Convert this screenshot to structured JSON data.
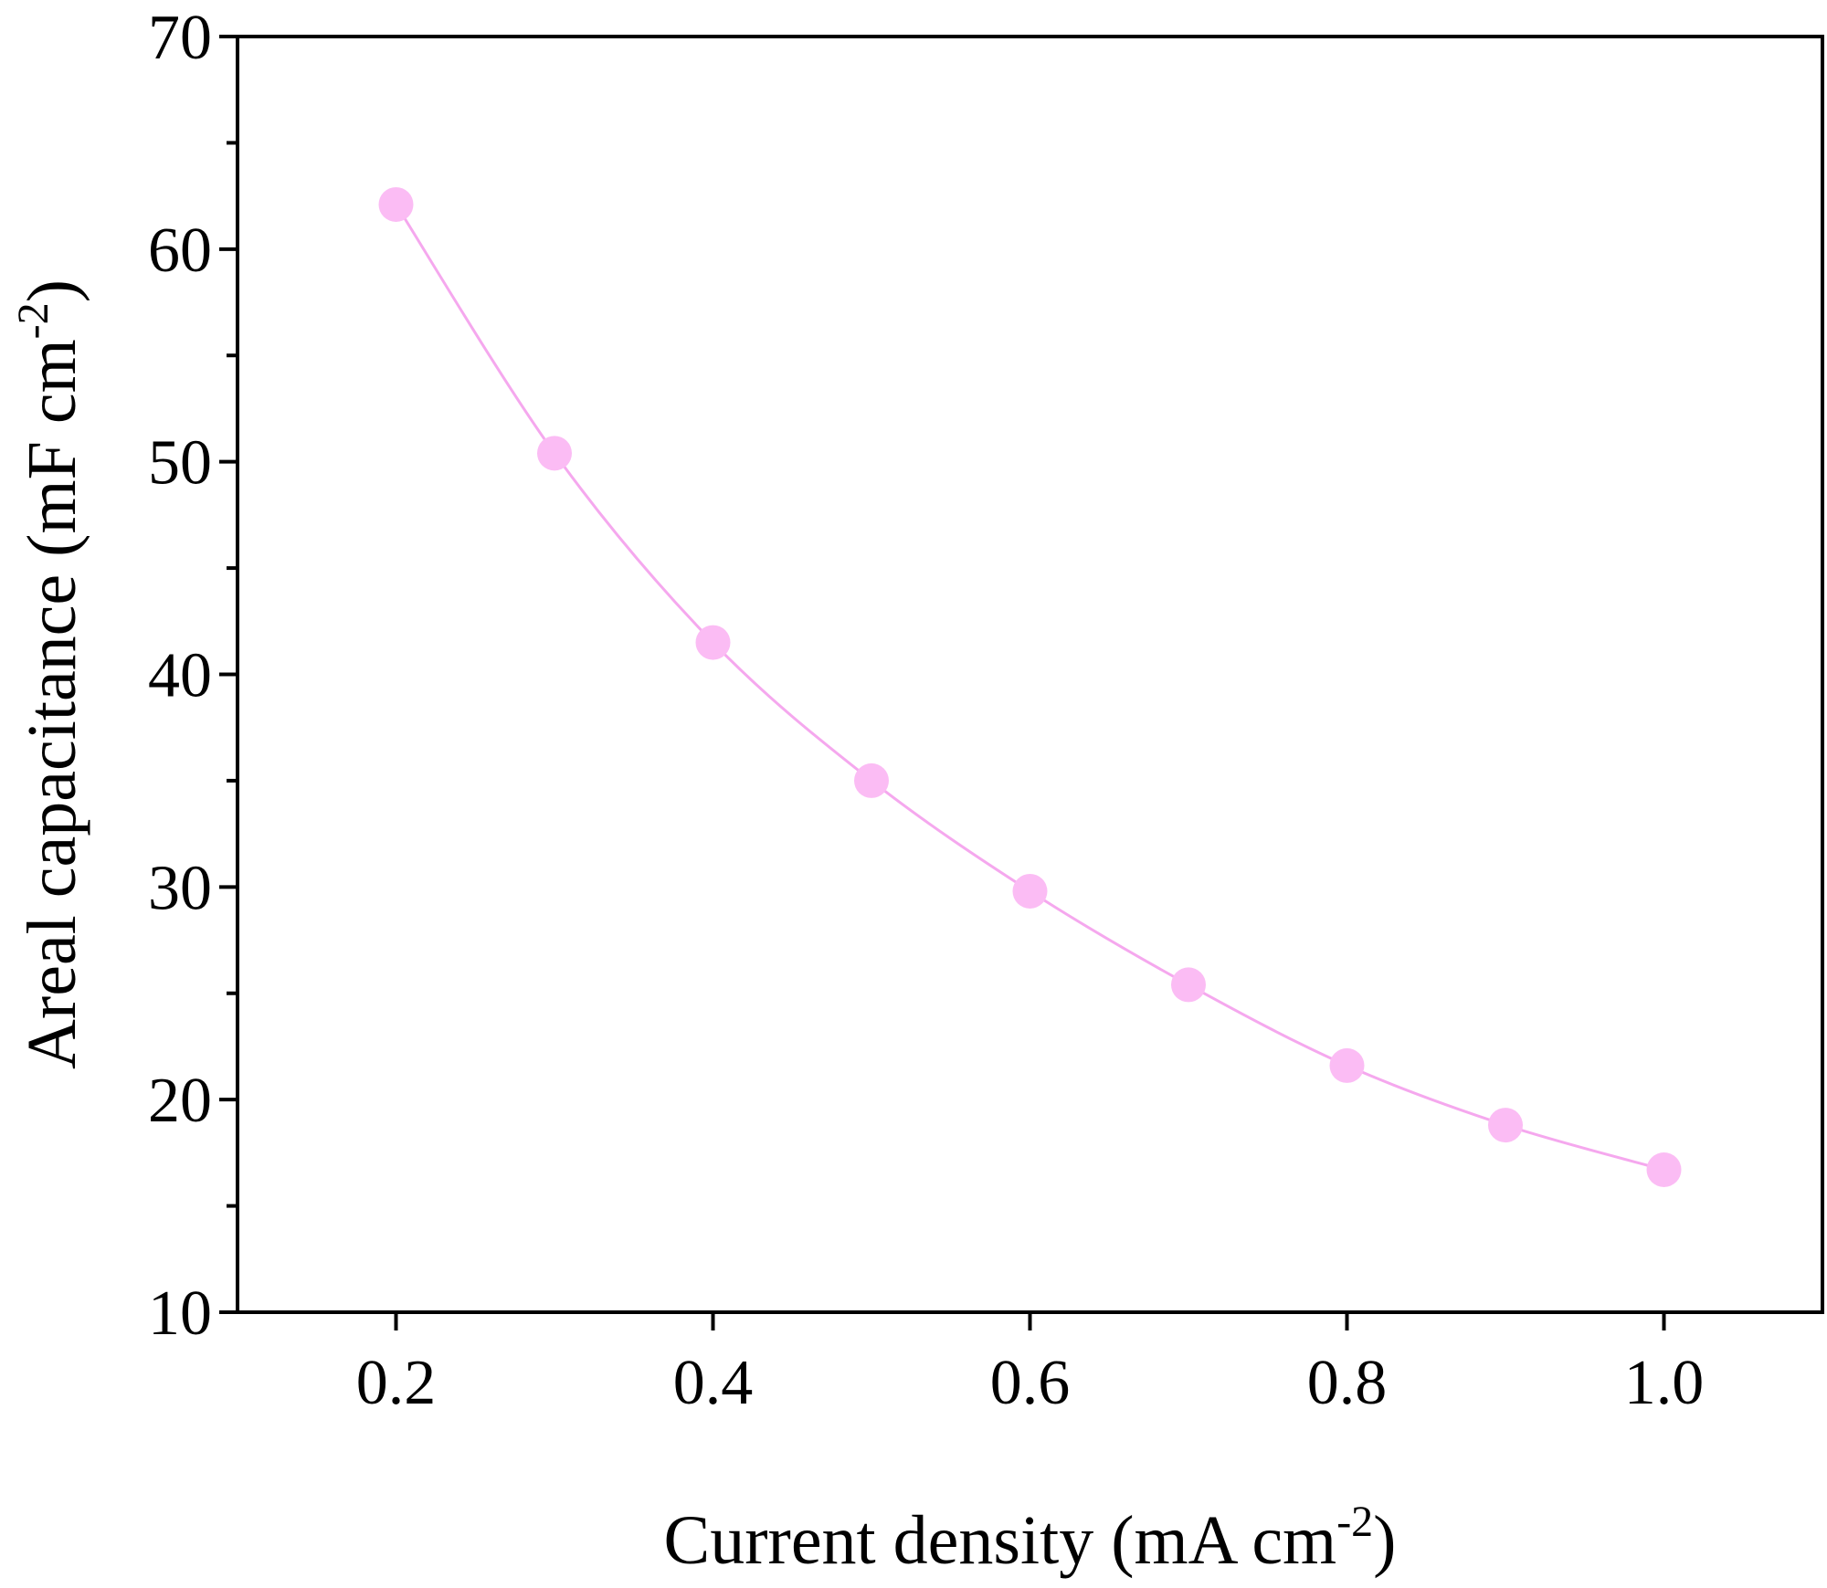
{
  "chart_data": {
    "type": "line",
    "x_axis": {
      "label_main": "Current density (mA cm",
      "label_sup": "-2",
      "label_end": ")",
      "range": [
        0.1,
        1.1
      ],
      "ticks": [
        0.2,
        0.4,
        0.6,
        0.8,
        1.0
      ],
      "tick_labels": [
        "0.2",
        "0.4",
        "0.6",
        "0.8",
        "1.0"
      ]
    },
    "y_axis": {
      "label_main": "Areal capacitance (mF cm",
      "label_sup": "-2",
      "label_end": ")",
      "range": [
        10,
        70
      ],
      "ticks": [
        10,
        20,
        30,
        40,
        50,
        60,
        70
      ],
      "tick_labels": [
        "10",
        "20",
        "30",
        "40",
        "50",
        "60",
        "70"
      ],
      "minor_ticks": [
        15,
        25,
        35,
        45,
        55,
        65
      ]
    },
    "grid": false,
    "series": [
      {
        "x": [
          0.2,
          0.3,
          0.4,
          0.5,
          0.6,
          0.7,
          0.8,
          0.9,
          1.0
        ],
        "y": [
          62.1,
          50.4,
          41.5,
          35.0,
          29.8,
          25.4,
          21.6,
          18.8,
          16.7
        ],
        "line_color": "#f5a8ee",
        "marker_color": "#fbbcf4",
        "marker": "circle"
      }
    ]
  }
}
